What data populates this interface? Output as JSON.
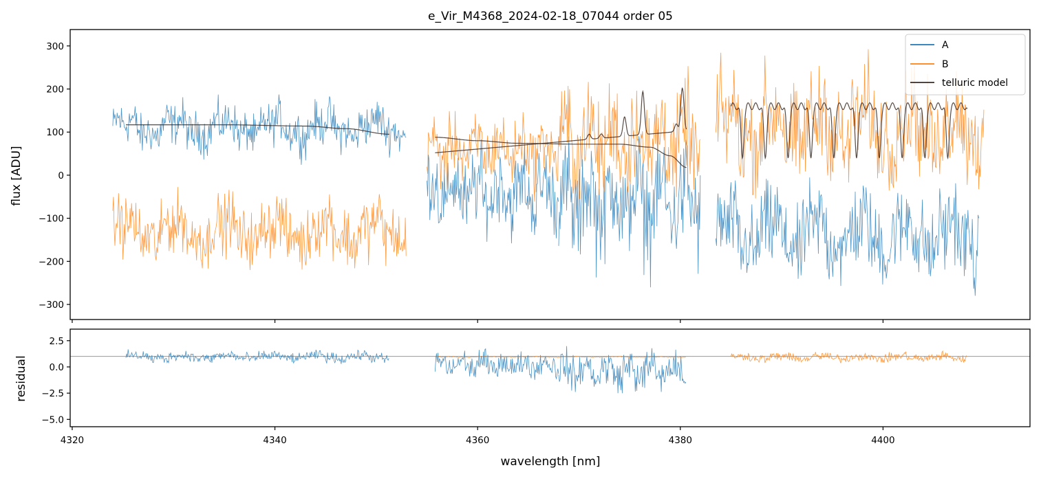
{
  "chart_data": {
    "type": "line",
    "title": "e_Vir_M4368_2024-02-18_07044  order 05",
    "xlabel": "wavelength [nm]",
    "xlim": [
      4319.8,
      4414.5
    ],
    "xticks": [
      "4320",
      "4340",
      "4360",
      "4380",
      "4400"
    ],
    "xtick_values": [
      4320,
      4340,
      4360,
      4380,
      4400
    ],
    "colors": {
      "A": "#1f77b4",
      "B": "#ff7f0e",
      "telluric": "#3a2a22",
      "refline": "#888888"
    },
    "panels": [
      {
        "name": "flux",
        "ylabel": "flux [ADU]",
        "ylim": [
          -335,
          338
        ],
        "yticks": [
          "300",
          "200",
          "100",
          "0",
          "−100",
          "−200",
          "−300"
        ],
        "ytick_values": [
          300,
          200,
          100,
          0,
          -100,
          -200,
          -300
        ],
        "series": [
          {
            "name": "A",
            "segments": [
              {
                "start": 4324.0,
                "end": 4353.0,
                "mean": 110,
                "amp": 70
              },
              {
                "start": 4355.0,
                "end": 4368.0,
                "mean": -40,
                "amp": 120
              },
              {
                "start": 4368.0,
                "end": 4382.0,
                "mean": -60,
                "amp": 170
              },
              {
                "start": 4383.5,
                "end": 4409.5,
                "mean": -140,
                "amp": 140
              }
            ]
          },
          {
            "name": "B",
            "segments": [
              {
                "start": 4324.0,
                "end": 4353.0,
                "mean": -130,
                "amp": 100
              },
              {
                "start": 4355.0,
                "end": 4368.0,
                "mean": 60,
                "amp": 100
              },
              {
                "start": 4368.0,
                "end": 4382.0,
                "mean": 80,
                "amp": 160
              },
              {
                "start": 4383.5,
                "end": 4410.0,
                "mean": 110,
                "amp": 160
              }
            ]
          },
          {
            "name": "telluric model",
            "segments": [
              {
                "start": 4325.3,
                "end": 4351.3,
                "kind": "smooth",
                "points": [
                  [
                    4325.3,
                    117
                  ],
                  [
                    4335,
                    117
                  ],
                  [
                    4343,
                    114
                  ],
                  [
                    4347,
                    108
                  ],
                  [
                    4351.3,
                    95
                  ]
                ]
              },
              {
                "start": 4355.8,
                "end": 4380.6,
                "kind": "smooth",
                "points": [
                  [
                    4355.8,
                    88
                  ],
                  [
                    4360,
                    80
                  ],
                  [
                    4364,
                    74
                  ],
                  [
                    4370,
                    72
                  ],
                  [
                    4374,
                    72
                  ],
                  [
                    4377,
                    65
                  ],
                  [
                    4379,
                    45
                  ],
                  [
                    4380.6,
                    18
                  ]
                ]
              },
              {
                "start": 4355.8,
                "end": 4380.6,
                "kind": "lines",
                "base_start": 52,
                "base_end": 103,
                "lines": [
                  [
                    4371.0,
                    12
                  ],
                  [
                    4372.2,
                    10
                  ],
                  [
                    4374.5,
                    45
                  ],
                  [
                    4376.3,
                    100
                  ],
                  [
                    4379.6,
                    18
                  ],
                  [
                    4380.2,
                    100
                  ]
                ]
              },
              {
                "start": 4385.0,
                "end": 4408.3,
                "kind": "periodic",
                "high": 160,
                "low": 40,
                "period": 2.25
              }
            ]
          }
        ]
      },
      {
        "name": "residual",
        "ylabel": "residual",
        "ylim": [
          -5.7,
          3.6
        ],
        "yticks": [
          "2.5",
          "0.0",
          "−2.5",
          "−5.0"
        ],
        "ytick_values": [
          2.5,
          0.0,
          -2.5,
          -5.0
        ],
        "reference_line": 1.0,
        "series": [
          {
            "name": "A",
            "segments": [
              {
                "start": 4325.3,
                "end": 4351.3,
                "mean": 0.95,
                "amp": 0.7
              },
              {
                "start": 4355.8,
                "end": 4368.0,
                "mean": 0.2,
                "amp": 1.6
              },
              {
                "start": 4368.0,
                "end": 4380.6,
                "mean": -0.4,
                "amp": 2.4
              }
            ]
          },
          {
            "name": "B",
            "segments": [
              {
                "start": 4355.8,
                "end": 4380.6,
                "mean": 0.95,
                "amp": 0.07
              },
              {
                "start": 4385.0,
                "end": 4408.3,
                "mean": 0.9,
                "amp": 0.6
              }
            ]
          }
        ]
      }
    ],
    "legend": {
      "placement": "top-right",
      "entries": [
        {
          "label": "A",
          "color": "#1f77b4"
        },
        {
          "label": "B",
          "color": "#ff7f0e"
        },
        {
          "label": "telluric model",
          "color": "#3a2a22"
        }
      ]
    }
  }
}
